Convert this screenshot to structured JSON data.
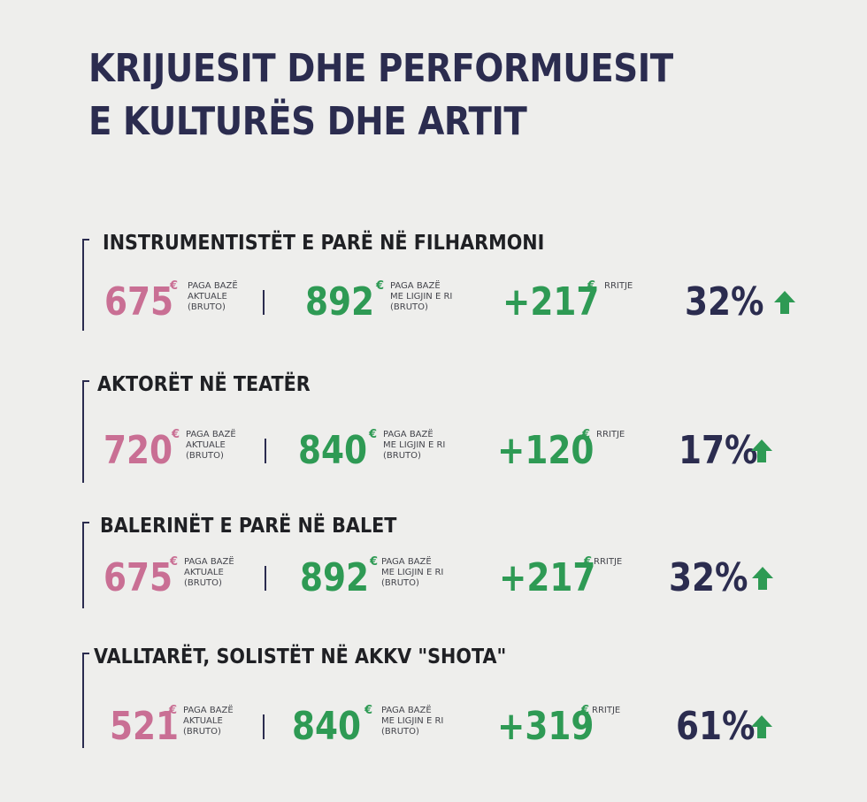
{
  "title": {
    "line1": "KRIJUESIT DHE PERFORMUESIT",
    "line2": "E KULTURËS DHE ARTIT"
  },
  "colors": {
    "title": "#2b2c4f",
    "current": "#c96f94",
    "green": "#2e9a54",
    "percent": "#2b2c4f"
  },
  "icons": {
    "arrow": "arrow-up-icon"
  },
  "sections": [
    {
      "title": "INSTRUMENTISTËT E PARË NË FILHARMONI",
      "current": "675",
      "current_currency": "€",
      "current_note": [
        "PAGA BAZË",
        "AKTUALE",
        "(BRUTO)"
      ],
      "new": "892",
      "new_currency": "€",
      "new_note": [
        "PAGA BAZË",
        "ME LIGJIN E RI",
        "(BRUTO)"
      ],
      "increase": "+217",
      "increase_currency": "€",
      "increase_note": "RRITJE",
      "percent": "32%"
    },
    {
      "title": "AKTORËT NË TEATËR",
      "current": "720",
      "current_currency": "€",
      "current_note": [
        "PAGA BAZË",
        "AKTUALE",
        "(BRUTO)"
      ],
      "new": "840",
      "new_currency": "€",
      "new_note": [
        "PAGA BAZË",
        "ME LIGJIN E RI",
        "(BRUTO)"
      ],
      "increase": "+120",
      "increase_currency": "€",
      "increase_note": "RRITJE",
      "percent": "17%"
    },
    {
      "title": "BALERINËT E PARË NË BALET",
      "current": "675",
      "current_currency": "€",
      "current_note": [
        "PAGA BAZË",
        "AKTUALE",
        "(BRUTO)"
      ],
      "new": "892",
      "new_currency": "€",
      "new_note": [
        "PAGA BAZË",
        "ME LIGJIN E RI",
        "(BRUTO)"
      ],
      "increase": "+217",
      "increase_currency": "€",
      "increase_note": "RRITJE",
      "percent": "32%"
    },
    {
      "title": "VALLTARËT, SOLISTËT NË AKKV \"SHOTA\"",
      "current": "521",
      "current_currency": "€",
      "current_note": [
        "PAGA BAZË",
        "AKTUALE",
        "(BRUTO)"
      ],
      "new": "840",
      "new_currency": "€",
      "new_note": [
        "PAGA BAZË",
        "ME LIGJIN E RI",
        "(BRUTO)"
      ],
      "increase": "+319",
      "increase_currency": "€",
      "increase_note": "RRITJE",
      "percent": "61%"
    }
  ]
}
